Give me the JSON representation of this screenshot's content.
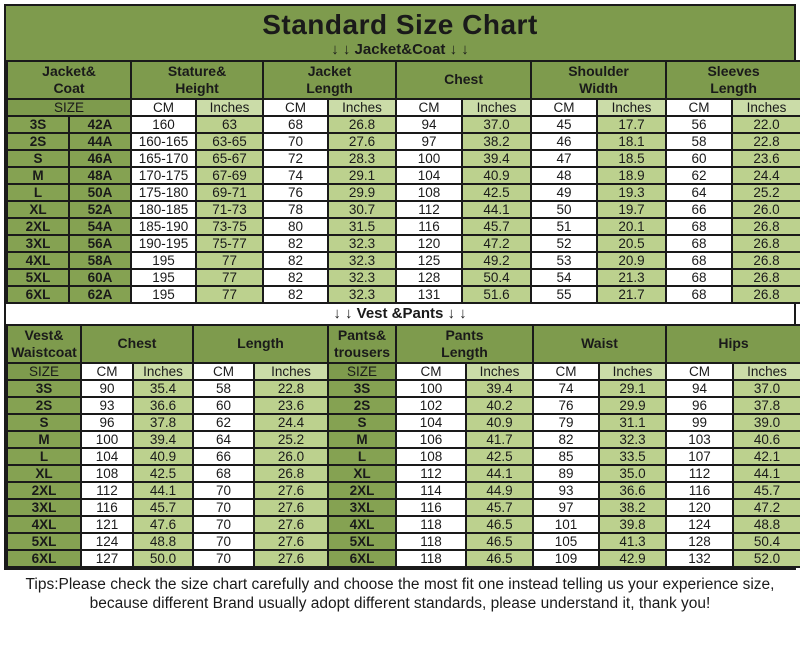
{
  "title": "Standard Size Chart",
  "jacket_section_label": "↓ ↓  Jacket&Coat ↓ ↓",
  "vest_section_label": "↓ ↓  Vest &Pants ↓ ↓",
  "labels": {
    "size": "SIZE",
    "cm": "CM",
    "inches": "Inches"
  },
  "colors": {
    "olive": "#7E9B4D",
    "olive_cell": "#85A252",
    "light_green": "#BCD18E",
    "lighter_green": "#CBDCA8",
    "border": "#1A1A1A",
    "text": "#1A1A1A",
    "background": "#FFFFFF"
  },
  "tips": {
    "line1": "Tips:Please check the size chart carefully and choose the most fit one instead telling us your experience size,",
    "line2": "because different Brand usually adopt different standards, please understand it, thank you!"
  },
  "chart_data": [
    {
      "type": "table",
      "title": "Jacket&Coat",
      "column_groups": [
        "Jacket&\nCoat",
        "Stature&\nHeight",
        "Jacket\nLength",
        "Chest",
        "Shoulder\nWidth",
        "Sleeves\nLength"
      ],
      "unit_headers": [
        "SIZE",
        "CM",
        "Inches",
        "CM",
        "Inches",
        "CM",
        "Inches",
        "CM",
        "Inches",
        "CM",
        "Inches"
      ],
      "rows": [
        {
          "size": "3S",
          "code": "42A",
          "stature_cm": "160",
          "stature_in": "63",
          "jacket_cm": "68",
          "jacket_in": "26.8",
          "chest_cm": "94",
          "chest_in": "37.0",
          "shoulder_cm": "45",
          "shoulder_in": "17.7",
          "sleeve_cm": "56",
          "sleeve_in": "22.0"
        },
        {
          "size": "2S",
          "code": "44A",
          "stature_cm": "160-165",
          "stature_in": "63-65",
          "jacket_cm": "70",
          "jacket_in": "27.6",
          "chest_cm": "97",
          "chest_in": "38.2",
          "shoulder_cm": "46",
          "shoulder_in": "18.1",
          "sleeve_cm": "58",
          "sleeve_in": "22.8"
        },
        {
          "size": "S",
          "code": "46A",
          "stature_cm": "165-170",
          "stature_in": "65-67",
          "jacket_cm": "72",
          "jacket_in": "28.3",
          "chest_cm": "100",
          "chest_in": "39.4",
          "shoulder_cm": "47",
          "shoulder_in": "18.5",
          "sleeve_cm": "60",
          "sleeve_in": "23.6"
        },
        {
          "size": "M",
          "code": "48A",
          "stature_cm": "170-175",
          "stature_in": "67-69",
          "jacket_cm": "74",
          "jacket_in": "29.1",
          "chest_cm": "104",
          "chest_in": "40.9",
          "shoulder_cm": "48",
          "shoulder_in": "18.9",
          "sleeve_cm": "62",
          "sleeve_in": "24.4"
        },
        {
          "size": "L",
          "code": "50A",
          "stature_cm": "175-180",
          "stature_in": "69-71",
          "jacket_cm": "76",
          "jacket_in": "29.9",
          "chest_cm": "108",
          "chest_in": "42.5",
          "shoulder_cm": "49",
          "shoulder_in": "19.3",
          "sleeve_cm": "64",
          "sleeve_in": "25.2"
        },
        {
          "size": "XL",
          "code": "52A",
          "stature_cm": "180-185",
          "stature_in": "71-73",
          "jacket_cm": "78",
          "jacket_in": "30.7",
          "chest_cm": "112",
          "chest_in": "44.1",
          "shoulder_cm": "50",
          "shoulder_in": "19.7",
          "sleeve_cm": "66",
          "sleeve_in": "26.0"
        },
        {
          "size": "2XL",
          "code": "54A",
          "stature_cm": "185-190",
          "stature_in": "73-75",
          "jacket_cm": "80",
          "jacket_in": "31.5",
          "chest_cm": "116",
          "chest_in": "45.7",
          "shoulder_cm": "51",
          "shoulder_in": "20.1",
          "sleeve_cm": "68",
          "sleeve_in": "26.8"
        },
        {
          "size": "3XL",
          "code": "56A",
          "stature_cm": "190-195",
          "stature_in": "75-77",
          "jacket_cm": "82",
          "jacket_in": "32.3",
          "chest_cm": "120",
          "chest_in": "47.2",
          "shoulder_cm": "52",
          "shoulder_in": "20.5",
          "sleeve_cm": "68",
          "sleeve_in": "26.8"
        },
        {
          "size": "4XL",
          "code": "58A",
          "stature_cm": "195",
          "stature_in": "77",
          "jacket_cm": "82",
          "jacket_in": "32.3",
          "chest_cm": "125",
          "chest_in": "49.2",
          "shoulder_cm": "53",
          "shoulder_in": "20.9",
          "sleeve_cm": "68",
          "sleeve_in": "26.8"
        },
        {
          "size": "5XL",
          "code": "60A",
          "stature_cm": "195",
          "stature_in": "77",
          "jacket_cm": "82",
          "jacket_in": "32.3",
          "chest_cm": "128",
          "chest_in": "50.4",
          "shoulder_cm": "54",
          "shoulder_in": "21.3",
          "sleeve_cm": "68",
          "sleeve_in": "26.8"
        },
        {
          "size": "6XL",
          "code": "62A",
          "stature_cm": "195",
          "stature_in": "77",
          "jacket_cm": "82",
          "jacket_in": "32.3",
          "chest_cm": "131",
          "chest_in": "51.6",
          "shoulder_cm": "55",
          "shoulder_in": "21.7",
          "sleeve_cm": "68",
          "sleeve_in": "26.8"
        }
      ]
    },
    {
      "type": "table",
      "title": "Vest &Pants",
      "column_groups": [
        "Vest&\nWaistcoat",
        "Chest",
        "Length",
        "Pants&\ntrousers",
        "Pants\nLength",
        "Waist",
        "Hips"
      ],
      "unit_headers": [
        "SIZE",
        "CM",
        "Inches",
        "CM",
        "Inches",
        "SIZE",
        "CM",
        "Inches",
        "CM",
        "Inches",
        "CM",
        "Inches"
      ],
      "rows": [
        {
          "size": "3S",
          "chest_cm": "90",
          "chest_in": "35.4",
          "length_cm": "58",
          "length_in": "22.8",
          "psize": "3S",
          "plen_cm": "100",
          "plen_in": "39.4",
          "waist_cm": "74",
          "waist_in": "29.1",
          "hips_cm": "94",
          "hips_in": "37.0"
        },
        {
          "size": "2S",
          "chest_cm": "93",
          "chest_in": "36.6",
          "length_cm": "60",
          "length_in": "23.6",
          "psize": "2S",
          "plen_cm": "102",
          "plen_in": "40.2",
          "waist_cm": "76",
          "waist_in": "29.9",
          "hips_cm": "96",
          "hips_in": "37.8"
        },
        {
          "size": "S",
          "chest_cm": "96",
          "chest_in": "37.8",
          "length_cm": "62",
          "length_in": "24.4",
          "psize": "S",
          "plen_cm": "104",
          "plen_in": "40.9",
          "waist_cm": "79",
          "waist_in": "31.1",
          "hips_cm": "99",
          "hips_in": "39.0"
        },
        {
          "size": "M",
          "chest_cm": "100",
          "chest_in": "39.4",
          "length_cm": "64",
          "length_in": "25.2",
          "psize": "M",
          "plen_cm": "106",
          "plen_in": "41.7",
          "waist_cm": "82",
          "waist_in": "32.3",
          "hips_cm": "103",
          "hips_in": "40.6"
        },
        {
          "size": "L",
          "chest_cm": "104",
          "chest_in": "40.9",
          "length_cm": "66",
          "length_in": "26.0",
          "psize": "L",
          "plen_cm": "108",
          "plen_in": "42.5",
          "waist_cm": "85",
          "waist_in": "33.5",
          "hips_cm": "107",
          "hips_in": "42.1"
        },
        {
          "size": "XL",
          "chest_cm": "108",
          "chest_in": "42.5",
          "length_cm": "68",
          "length_in": "26.8",
          "psize": "XL",
          "plen_cm": "112",
          "plen_in": "44.1",
          "waist_cm": "89",
          "waist_in": "35.0",
          "hips_cm": "112",
          "hips_in": "44.1"
        },
        {
          "size": "2XL",
          "chest_cm": "112",
          "chest_in": "44.1",
          "length_cm": "70",
          "length_in": "27.6",
          "psize": "2XL",
          "plen_cm": "114",
          "plen_in": "44.9",
          "waist_cm": "93",
          "waist_in": "36.6",
          "hips_cm": "116",
          "hips_in": "45.7"
        },
        {
          "size": "3XL",
          "chest_cm": "116",
          "chest_in": "45.7",
          "length_cm": "70",
          "length_in": "27.6",
          "psize": "3XL",
          "plen_cm": "116",
          "plen_in": "45.7",
          "waist_cm": "97",
          "waist_in": "38.2",
          "hips_cm": "120",
          "hips_in": "47.2"
        },
        {
          "size": "4XL",
          "chest_cm": "121",
          "chest_in": "47.6",
          "length_cm": "70",
          "length_in": "27.6",
          "psize": "4XL",
          "plen_cm": "118",
          "plen_in": "46.5",
          "waist_cm": "101",
          "waist_in": "39.8",
          "hips_cm": "124",
          "hips_in": "48.8"
        },
        {
          "size": "5XL",
          "chest_cm": "124",
          "chest_in": "48.8",
          "length_cm": "70",
          "length_in": "27.6",
          "psize": "5XL",
          "plen_cm": "118",
          "plen_in": "46.5",
          "waist_cm": "105",
          "waist_in": "41.3",
          "hips_cm": "128",
          "hips_in": "50.4"
        },
        {
          "size": "6XL",
          "chest_cm": "127",
          "chest_in": "50.0",
          "length_cm": "70",
          "length_in": "27.6",
          "psize": "6XL",
          "plen_cm": "118",
          "plen_in": "46.5",
          "waist_cm": "109",
          "waist_in": "42.9",
          "hips_cm": "132",
          "hips_in": "52.0"
        }
      ]
    }
  ]
}
